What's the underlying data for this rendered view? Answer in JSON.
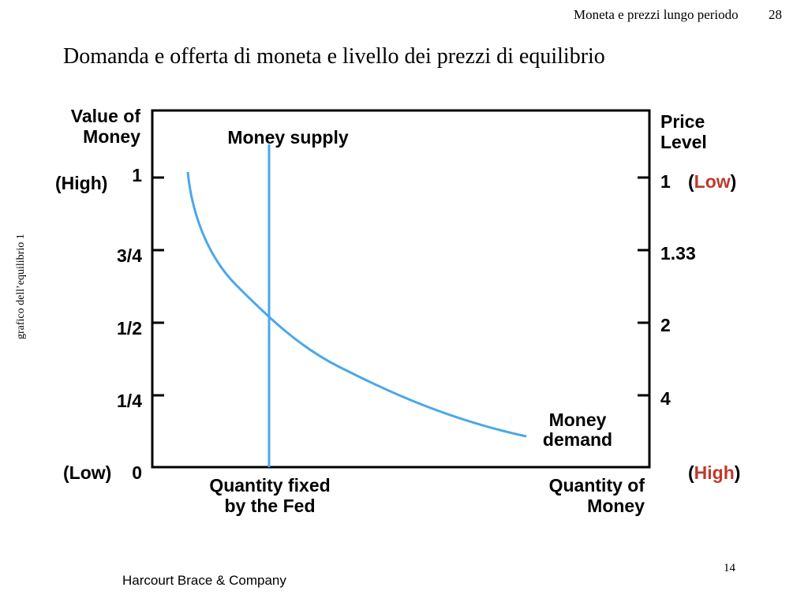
{
  "header": {
    "running_title": "Moneta e prezzi lungo periodo",
    "slide_number": "28"
  },
  "title": "Domanda e offerta di moneta e livello dei prezzi di equilibrio",
  "side_label": "grafico dell’equilibrio 1",
  "left_axis": {
    "label": [
      "Value of",
      "Money"
    ],
    "high": "(High)",
    "low": "(Low)",
    "ticks": [
      "1",
      "3/4",
      "1/2",
      "1/4",
      "0"
    ]
  },
  "right_axis": {
    "label": [
      "Price",
      "Level"
    ],
    "low": {
      "prefix": "(",
      "text": "Low",
      "suffix": ")"
    },
    "high": {
      "prefix": "(",
      "text": "High",
      "suffix": ")"
    },
    "ticks": [
      "1",
      "1.33",
      "2",
      "4"
    ]
  },
  "curves": {
    "supply": "Money supply",
    "demand": [
      "Money",
      "demand"
    ]
  },
  "x_labels": {
    "fixed": [
      "Quantity fixed",
      "by the Fed"
    ],
    "quantity": [
      "Quantity of",
      "Money"
    ]
  },
  "footer": {
    "publisher": "Harcourt Brace & Company",
    "page": "14"
  }
}
